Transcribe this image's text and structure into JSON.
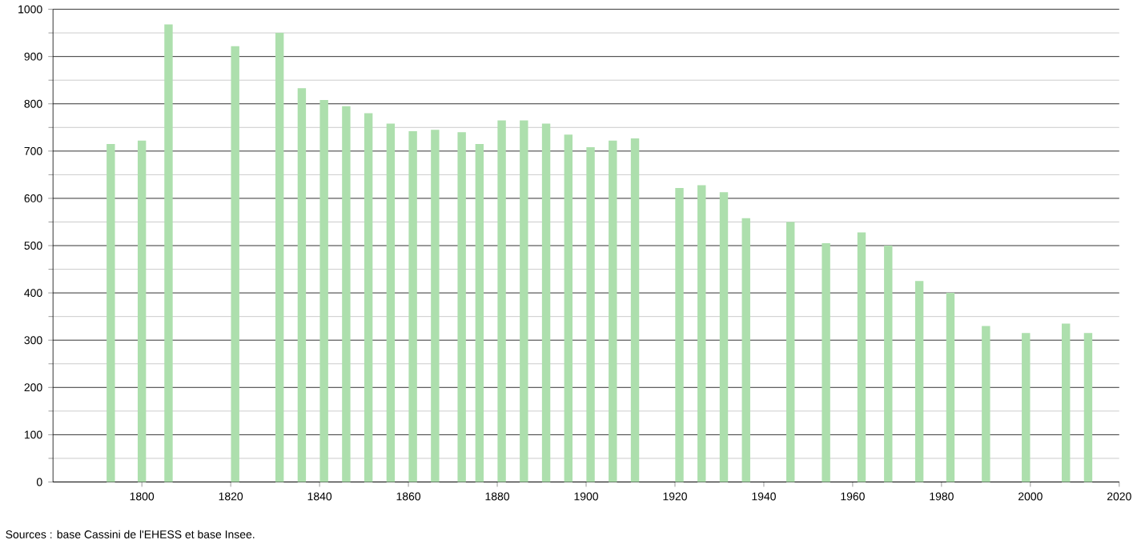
{
  "chart_data": {
    "type": "bar",
    "x": [
      1793,
      1800,
      1806,
      1821,
      1831,
      1836,
      1841,
      1846,
      1851,
      1856,
      1861,
      1866,
      1872,
      1876,
      1881,
      1886,
      1891,
      1896,
      1901,
      1906,
      1911,
      1921,
      1926,
      1931,
      1936,
      1946,
      1954,
      1962,
      1968,
      1975,
      1982,
      1990,
      1999,
      2008,
      2013
    ],
    "values": [
      715,
      722,
      968,
      922,
      950,
      833,
      808,
      795,
      780,
      758,
      742,
      745,
      740,
      715,
      765,
      765,
      758,
      735,
      708,
      722,
      727,
      622,
      628,
      613,
      558,
      550,
      505,
      528,
      500,
      425,
      400,
      330,
      315,
      335,
      315
    ],
    "color": "#addfad",
    "xlim": [
      1780,
      2020
    ],
    "xticks": [
      1800,
      1820,
      1840,
      1860,
      1880,
      1900,
      1920,
      1940,
      1960,
      1980,
      2000,
      2020
    ],
    "ylim": [
      0,
      1000
    ],
    "yticks": [
      0,
      100,
      200,
      300,
      400,
      500,
      600,
      700,
      800,
      900,
      1000
    ],
    "grid": "y",
    "annotations": [
      "Sources : base Cassini de l'EHESS et base Insee."
    ]
  }
}
